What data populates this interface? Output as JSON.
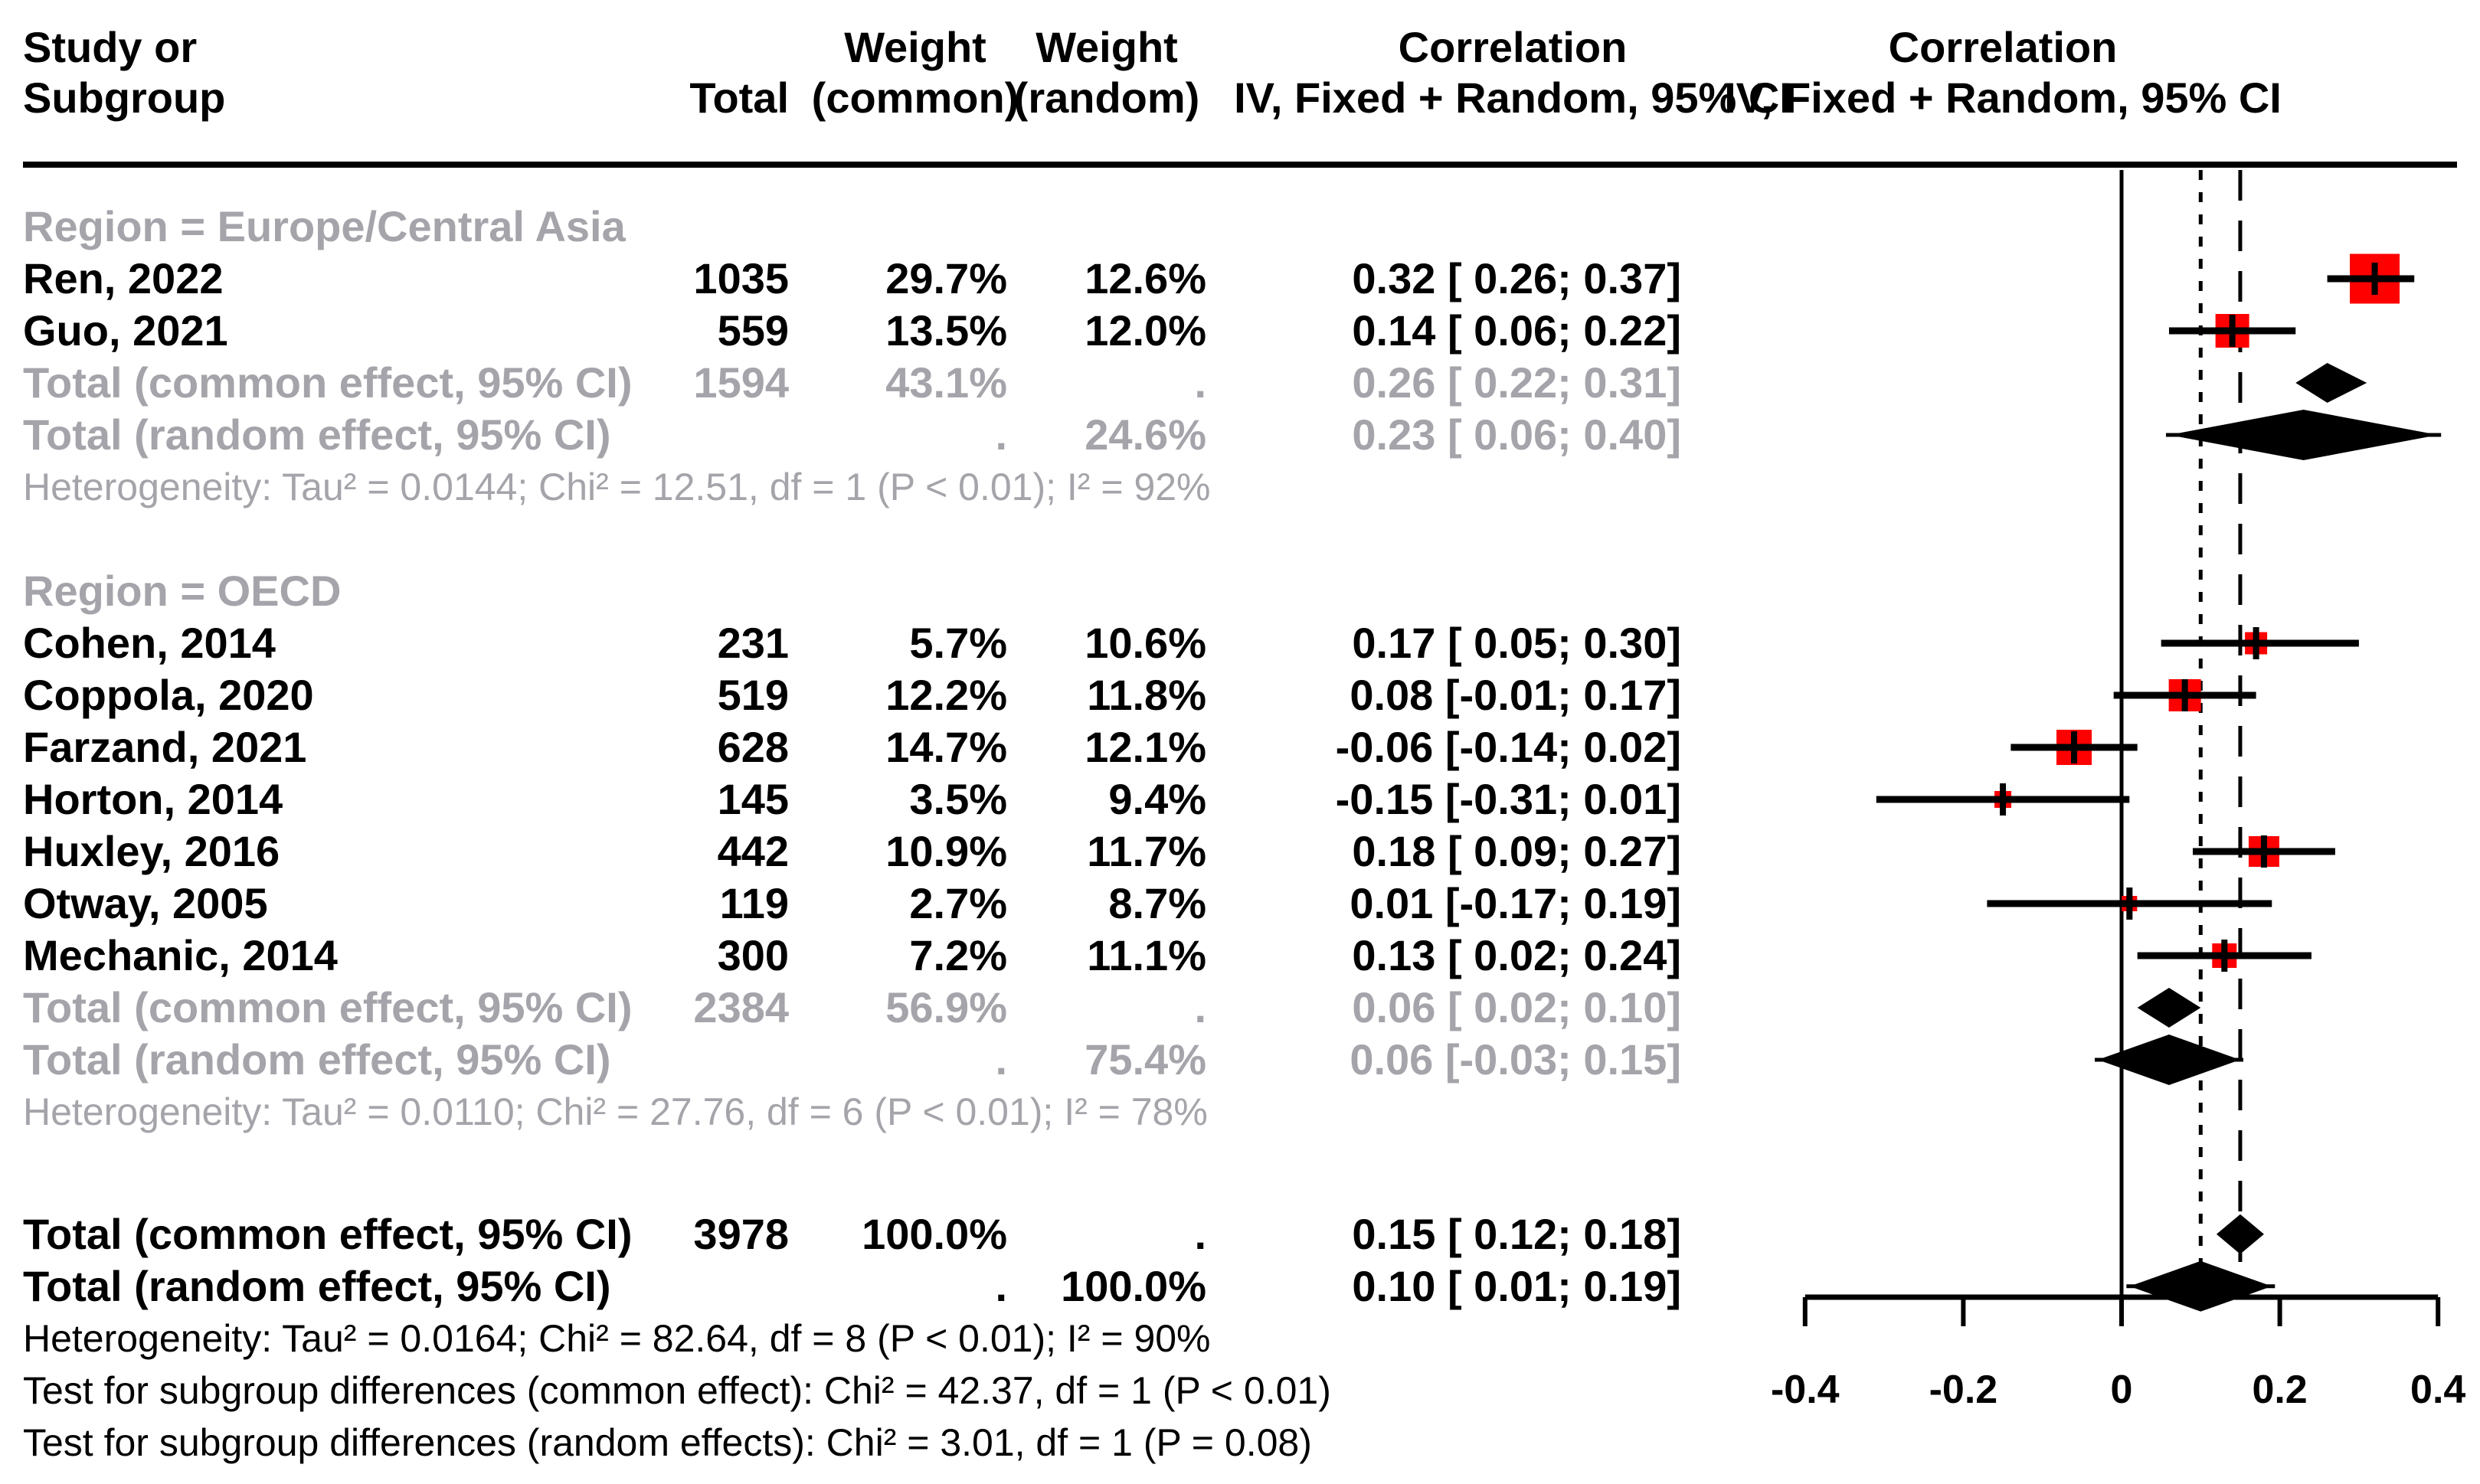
{
  "page": {
    "background": "#ffffff"
  },
  "header": {
    "study_line1": "Study or",
    "study_line2": "Subgroup",
    "total": "Total",
    "weight_common_line1": "Weight",
    "weight_common_line2": "(common)",
    "weight_random_line1": "Weight",
    "weight_random_line2": "(random)",
    "corr_text_line1": "Correlation",
    "corr_text_line2": "IV, Fixed + Random, 95% CI",
    "corr_plot_line1": "Correlation",
    "corr_plot_line2": "IV, Fixed + Random, 95% CI"
  },
  "colors": {
    "marker_red": "#ff0000",
    "subgroup_gray": "#a4a4aa",
    "text_black": "#000000",
    "line_black": "#000000"
  },
  "chart_data": {
    "type": "forest",
    "effect_label": "Correlation",
    "model_label": "IV, Fixed + Random, 95% CI",
    "x_axis": {
      "min": -0.4,
      "max": 0.4,
      "tick_values": [
        -0.4,
        -0.2,
        0,
        0.2,
        0.4
      ],
      "tick_labels": [
        "-0.4",
        "-0.2",
        "0",
        "0.2",
        "0.4"
      ]
    },
    "reference_lines": [
      {
        "name": "null-line",
        "value": 0,
        "style": "solid"
      },
      {
        "name": "overall-random-line",
        "value": 0.1,
        "style": "dotted"
      },
      {
        "name": "overall-common-line",
        "value": 0.15,
        "style": "dashed"
      }
    ],
    "groups": [
      {
        "label": "Region = Europe/Central Asia",
        "studies": [
          {
            "label": "Ren, 2022",
            "total": "1035",
            "weight_common": "29.7%",
            "weight_random": "12.6%",
            "ci_text": "0.32 [ 0.26; 0.37]",
            "estimate": 0.32,
            "lower": 0.26,
            "upper": 0.37
          },
          {
            "label": "Guo, 2021",
            "total": "559",
            "weight_common": "13.5%",
            "weight_random": "12.0%",
            "ci_text": "0.14 [ 0.06; 0.22]",
            "estimate": 0.14,
            "lower": 0.06,
            "upper": 0.22
          }
        ],
        "total_common": {
          "label": "Total (common effect, 95% CI)",
          "total": "1594",
          "weight_common": "43.1%",
          "weight_random": ".",
          "ci_text": "0.26 [ 0.22; 0.31]",
          "estimate": 0.26,
          "lower": 0.22,
          "upper": 0.31
        },
        "total_random": {
          "label": "Total (random effect, 95% CI)",
          "total": "",
          "weight_common": ".",
          "weight_random": "24.6%",
          "ci_text": "0.23 [ 0.06; 0.40]",
          "estimate": 0.23,
          "lower": 0.06,
          "upper": 0.4
        },
        "heterogeneity": "Heterogeneity: Tau² = 0.0144; Chi² = 12.51, df = 1 (P < 0.01); I² = 92%"
      },
      {
        "label": "Region = OECD",
        "studies": [
          {
            "label": "Cohen, 2014",
            "total": "231",
            "weight_common": "5.7%",
            "weight_random": "10.6%",
            "ci_text": "0.17 [ 0.05; 0.30]",
            "estimate": 0.17,
            "lower": 0.05,
            "upper": 0.3
          },
          {
            "label": "Coppola, 2020",
            "total": "519",
            "weight_common": "12.2%",
            "weight_random": "11.8%",
            "ci_text": "0.08 [-0.01; 0.17]",
            "estimate": 0.08,
            "lower": -0.01,
            "upper": 0.17
          },
          {
            "label": "Farzand, 2021",
            "total": "628",
            "weight_common": "14.7%",
            "weight_random": "12.1%",
            "ci_text": "-0.06 [-0.14; 0.02]",
            "estimate": -0.06,
            "lower": -0.14,
            "upper": 0.02
          },
          {
            "label": "Horton, 2014",
            "total": "145",
            "weight_common": "3.5%",
            "weight_random": "9.4%",
            "ci_text": "-0.15 [-0.31; 0.01]",
            "estimate": -0.15,
            "lower": -0.31,
            "upper": 0.01
          },
          {
            "label": "Huxley, 2016",
            "total": "442",
            "weight_common": "10.9%",
            "weight_random": "11.7%",
            "ci_text": "0.18 [ 0.09; 0.27]",
            "estimate": 0.18,
            "lower": 0.09,
            "upper": 0.27
          },
          {
            "label": "Otway, 2005",
            "total": "119",
            "weight_common": "2.7%",
            "weight_random": "8.7%",
            "ci_text": "0.01 [-0.17; 0.19]",
            "estimate": 0.01,
            "lower": -0.17,
            "upper": 0.19
          },
          {
            "label": "Mechanic, 2014",
            "total": "300",
            "weight_common": "7.2%",
            "weight_random": "11.1%",
            "ci_text": "0.13 [ 0.02; 0.24]",
            "estimate": 0.13,
            "lower": 0.02,
            "upper": 0.24
          }
        ],
        "total_common": {
          "label": "Total (common effect, 95% CI)",
          "total": "2384",
          "weight_common": "56.9%",
          "weight_random": ".",
          "ci_text": "0.06 [ 0.02; 0.10]",
          "estimate": 0.06,
          "lower": 0.02,
          "upper": 0.1
        },
        "total_random": {
          "label": "Total (random effect, 95% CI)",
          "total": "",
          "weight_common": ".",
          "weight_random": "75.4%",
          "ci_text": "0.06 [-0.03; 0.15]",
          "estimate": 0.06,
          "lower": -0.03,
          "upper": 0.15
        },
        "heterogeneity": "Heterogeneity: Tau² = 0.0110; Chi² = 27.76, df = 6 (P < 0.01); I² = 78%"
      }
    ],
    "overall_common": {
      "label": "Total (common effect, 95% CI)",
      "total": "3978",
      "weight_common": "100.0%",
      "weight_random": ".",
      "ci_text": "0.15 [ 0.12; 0.18]",
      "estimate": 0.15,
      "lower": 0.12,
      "upper": 0.18
    },
    "overall_random": {
      "label": "Total (random effect, 95% CI)",
      "total": "",
      "weight_common": ".",
      "weight_random": "100.0%",
      "ci_text": "0.10 [ 0.01; 0.19]",
      "estimate": 0.1,
      "lower": 0.01,
      "upper": 0.19
    },
    "heterogeneity_overall": "Heterogeneity: Tau² = 0.0164; Chi² = 82.64, df = 8 (P < 0.01); I² = 90%",
    "subgroup_tests": [
      "Test for subgroup differences (common effect): Chi² = 42.37, df = 1 (P < 0.01)",
      "Test for subgroup differences (random effects): Chi² = 3.01, df = 1 (P = 0.08)"
    ]
  }
}
